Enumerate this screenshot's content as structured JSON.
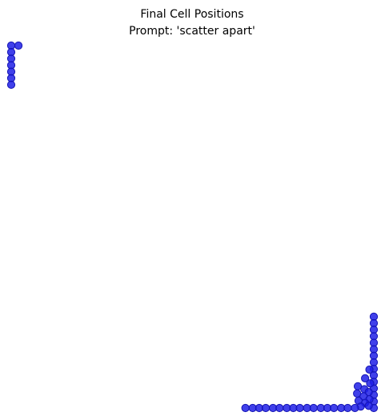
{
  "chart_data": {
    "type": "scatter",
    "title": "Final Cell Positions",
    "subtitle": "Prompt: 'scatter apart'",
    "xlim": [
      0,
      50
    ],
    "ylim": [
      0,
      50
    ],
    "axes_visible": false,
    "grid": false,
    "point_color": "#1f1fe6",
    "point_edge_color": "#1414b4",
    "points": [
      {
        "x": 0.0,
        "y": 50.0
      },
      {
        "x": 1.0,
        "y": 50.0
      },
      {
        "x": 0.0,
        "y": 49.1
      },
      {
        "x": 0.0,
        "y": 48.2
      },
      {
        "x": 0.0,
        "y": 47.3
      },
      {
        "x": 0.0,
        "y": 46.4
      },
      {
        "x": 0.0,
        "y": 45.5
      },
      {
        "x": 0.0,
        "y": 44.6
      },
      {
        "x": 50.0,
        "y": 12.6
      },
      {
        "x": 50.0,
        "y": 11.7
      },
      {
        "x": 50.0,
        "y": 10.8
      },
      {
        "x": 50.0,
        "y": 9.9
      },
      {
        "x": 50.0,
        "y": 9.0
      },
      {
        "x": 50.0,
        "y": 8.1
      },
      {
        "x": 50.0,
        "y": 7.2
      },
      {
        "x": 50.0,
        "y": 6.3
      },
      {
        "x": 50.0,
        "y": 5.4
      },
      {
        "x": 50.0,
        "y": 4.5
      },
      {
        "x": 50.0,
        "y": 3.6
      },
      {
        "x": 50.0,
        "y": 2.7
      },
      {
        "x": 50.0,
        "y": 1.8
      },
      {
        "x": 50.0,
        "y": 0.9
      },
      {
        "x": 50.0,
        "y": 0.0
      },
      {
        "x": 49.4,
        "y": 5.3
      },
      {
        "x": 48.8,
        "y": 4.1
      },
      {
        "x": 49.5,
        "y": 3.4
      },
      {
        "x": 47.8,
        "y": 3.0
      },
      {
        "x": 48.7,
        "y": 2.6
      },
      {
        "x": 49.3,
        "y": 2.2
      },
      {
        "x": 47.7,
        "y": 2.0
      },
      {
        "x": 48.6,
        "y": 1.6
      },
      {
        "x": 49.4,
        "y": 1.2
      },
      {
        "x": 47.9,
        "y": 1.0
      },
      {
        "x": 48.8,
        "y": 0.7
      },
      {
        "x": 49.3,
        "y": 0.3
      },
      {
        "x": 48.2,
        "y": 0.2
      },
      {
        "x": 32.3,
        "y": 0.0
      },
      {
        "x": 33.3,
        "y": 0.0
      },
      {
        "x": 34.2,
        "y": 0.0
      },
      {
        "x": 35.1,
        "y": 0.0
      },
      {
        "x": 36.1,
        "y": 0.0
      },
      {
        "x": 37.0,
        "y": 0.0
      },
      {
        "x": 38.0,
        "y": 0.0
      },
      {
        "x": 38.9,
        "y": 0.0
      },
      {
        "x": 39.8,
        "y": 0.0
      },
      {
        "x": 40.8,
        "y": 0.0
      },
      {
        "x": 41.7,
        "y": 0.0
      },
      {
        "x": 42.7,
        "y": 0.0
      },
      {
        "x": 43.6,
        "y": 0.0
      },
      {
        "x": 44.5,
        "y": 0.0
      },
      {
        "x": 45.5,
        "y": 0.0
      },
      {
        "x": 46.4,
        "y": 0.0
      },
      {
        "x": 47.4,
        "y": 0.0
      }
    ]
  }
}
